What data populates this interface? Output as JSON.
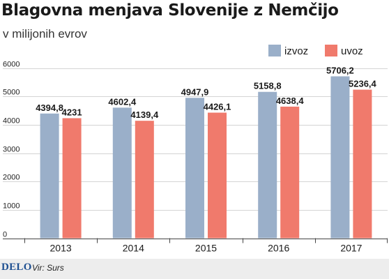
{
  "chart_data": {
    "type": "bar",
    "title": "Blagovna menjava Slovenije z Nemčijo",
    "subtitle": "v milijonih evrov",
    "categories": [
      "2013",
      "2014",
      "2015",
      "2016",
      "2017"
    ],
    "series": [
      {
        "name": "izvoz",
        "color": "#9aafc9",
        "values": [
          4394.8,
          4602.4,
          4947.9,
          5158.8,
          5706.2
        ],
        "labels": [
          "4394,8",
          "4602,4",
          "4947,9",
          "5158,8",
          "5706,2"
        ]
      },
      {
        "name": "uvoz",
        "color": "#f07a6c",
        "values": [
          4231,
          4139.4,
          4426.1,
          4638.4,
          5236.4
        ],
        "labels": [
          "4231",
          "4139,4",
          "4426,1",
          "4638,4",
          "5236,4"
        ]
      }
    ],
    "y_ticks": [
      0,
      1000,
      2000,
      3000,
      4000,
      5000,
      6000
    ],
    "ylim": [
      0,
      6000
    ],
    "grid": true,
    "legend": "top-right"
  },
  "footer": {
    "logo": "DELO",
    "source": "Vir: Surs"
  }
}
